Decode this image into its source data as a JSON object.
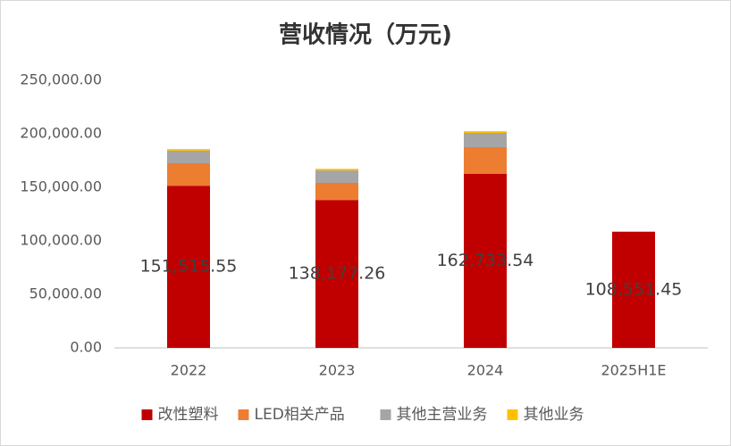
{
  "chart_data": {
    "type": "stacked_bar",
    "title": "营收情况（万元)",
    "categories": [
      "2022",
      "2023",
      "2024",
      "2025H1E"
    ],
    "series": [
      {
        "name": "改性塑料",
        "color": "#c00000",
        "values": [
          151515.55,
          138177.26,
          162733.54,
          108551.45
        ],
        "value_labels": [
          "151,515.55",
          "138,177.26",
          "162,733.54",
          "108,551.45"
        ]
      },
      {
        "name": "LED相关产品",
        "color": "#ed7d31",
        "values": [
          21000,
          16000,
          24800,
          null
        ]
      },
      {
        "name": "其他主营业务",
        "color": "#a5a5a5",
        "values": [
          11700,
          11600,
          13300,
          null
        ]
      },
      {
        "name": "其他业务",
        "color": "#ffc000",
        "values": [
          1500,
          1500,
          1600,
          null
        ]
      }
    ],
    "ylim": [
      0,
      250000
    ],
    "yticks": [
      {
        "value": 0,
        "label": "0.00"
      },
      {
        "value": 50000,
        "label": "50,000.00"
      },
      {
        "value": 100000,
        "label": "100,000.00"
      },
      {
        "value": 150000,
        "label": "150,000.00"
      },
      {
        "value": 200000,
        "label": "200,000.00"
      },
      {
        "value": 250000,
        "label": "250,000.00"
      }
    ],
    "grid": false,
    "legend": "bottom"
  }
}
